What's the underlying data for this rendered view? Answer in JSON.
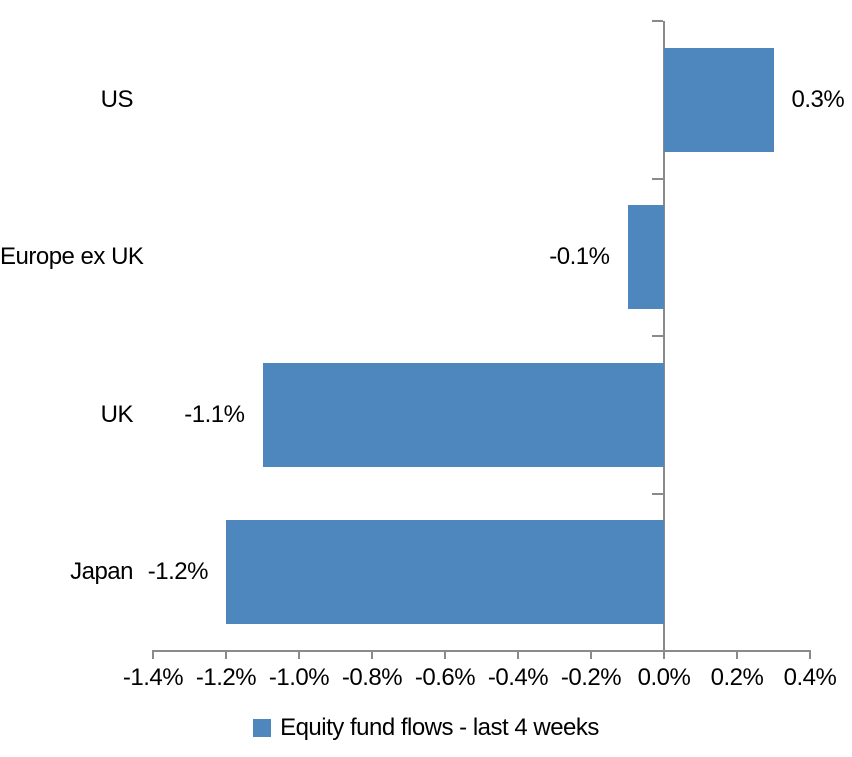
{
  "chart_data": {
    "type": "bar",
    "orientation": "horizontal",
    "title": "",
    "xlabel": "",
    "ylabel": "",
    "categories": [
      "US",
      "Europe ex UK",
      "UK",
      "Japan"
    ],
    "series": [
      {
        "name": "Equity fund flows - last 4 weeks",
        "values": [
          0.3,
          -0.1,
          -1.1,
          -1.2
        ],
        "data_labels": [
          "0.3%",
          "-0.1%",
          "-1.1%",
          "-1.2%"
        ]
      }
    ],
    "x_axis": {
      "min": -1.4,
      "max": 0.4,
      "step": 0.2,
      "tick_labels": [
        "-1.4%",
        "-1.2%",
        "-1.0%",
        "-0.8%",
        "-0.6%",
        "-0.4%",
        "-0.2%",
        "0.0%",
        "0.2%",
        "0.4%"
      ]
    },
    "grid": false,
    "legend": {
      "position": "bottom",
      "entries": [
        {
          "label": "Equity fund flows - last 4 weeks",
          "color": "#4D87BE"
        }
      ]
    },
    "colors": {
      "bar": "#4D87BE",
      "axis": "#8A8A8A",
      "text": "#000000",
      "background": "#FFFFFF"
    }
  }
}
